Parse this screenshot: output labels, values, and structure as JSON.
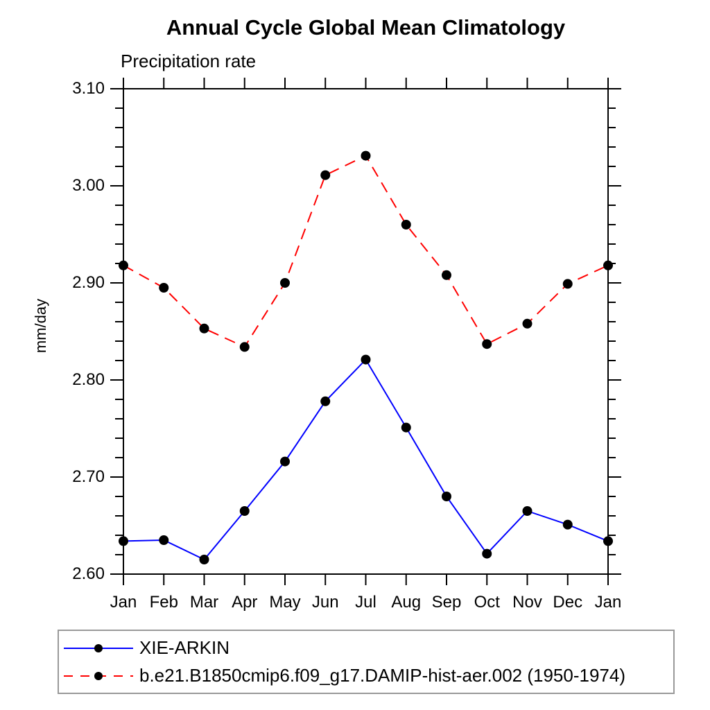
{
  "chart_data": {
    "type": "line",
    "title": "Annual Cycle Global Mean Climatology",
    "subtitle": "Precipitation rate",
    "ylabel": "mm/day",
    "xlabel": "",
    "categories": [
      "Jan",
      "Feb",
      "Mar",
      "Apr",
      "May",
      "Jun",
      "Jul",
      "Aug",
      "Sep",
      "Oct",
      "Nov",
      "Dec",
      "Jan"
    ],
    "series": [
      {
        "name": "XIE-ARKIN",
        "color": "#0000ff",
        "style": "solid",
        "marker": "black-circle",
        "values": [
          2.634,
          2.635,
          2.615,
          2.665,
          2.716,
          2.778,
          2.821,
          2.751,
          2.68,
          2.621,
          2.665,
          2.651,
          2.634
        ]
      },
      {
        "name": "b.e21.B1850cmip6.f09_g17.DAMIP-hist-aer.002 (1950-1974)",
        "color": "#ff0000",
        "style": "dashed",
        "marker": "black-circle",
        "values": [
          2.918,
          2.895,
          2.853,
          2.834,
          2.9,
          3.011,
          3.031,
          2.96,
          2.908,
          2.837,
          2.858,
          2.899,
          2.918
        ]
      }
    ],
    "ylim": [
      2.6,
      3.1
    ],
    "yticks_major": [
      2.6,
      2.7,
      2.8,
      2.9,
      3.0,
      3.1
    ],
    "ytick_labels": [
      "2.60",
      "2.70",
      "2.80",
      "2.90",
      "3.00",
      "3.10"
    ],
    "minor_tick_step": 0.02,
    "grid": false,
    "legend_position": "bottom-left-box",
    "axis_color": "#000000",
    "marker_color": "#000000"
  }
}
